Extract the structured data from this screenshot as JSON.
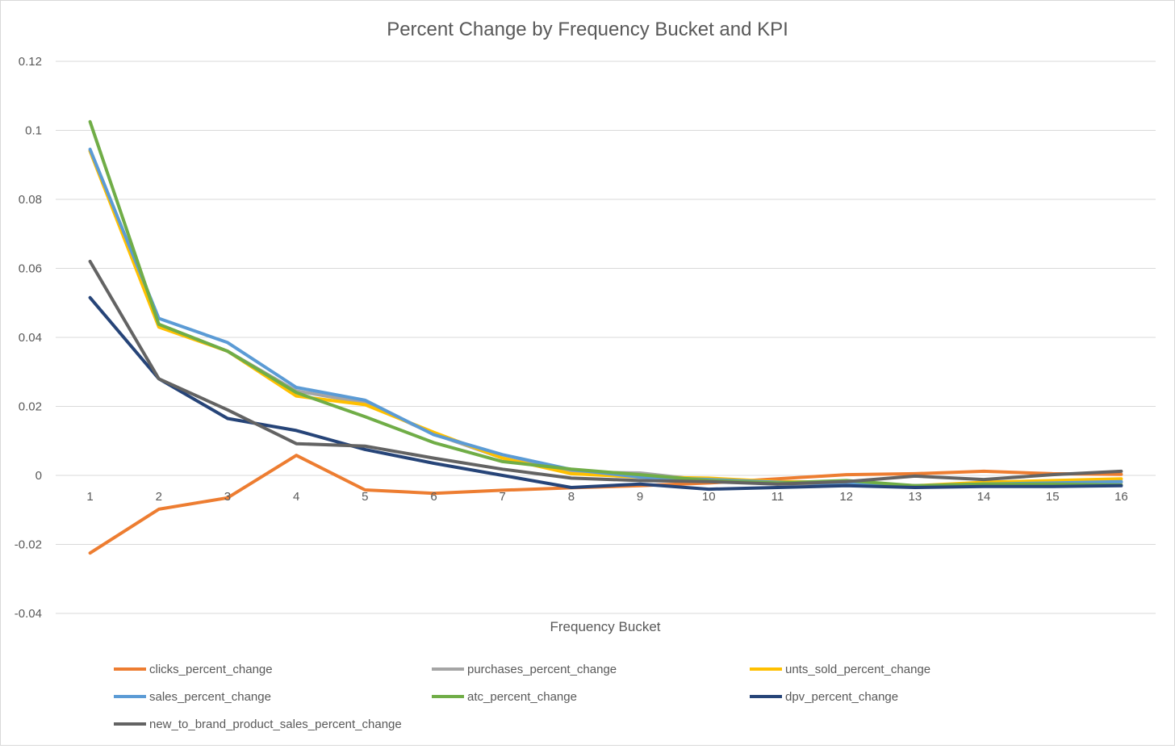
{
  "chart_data": {
    "type": "line",
    "title": "Percent Change by Frequency Bucket and KPI",
    "xlabel": "Frequency Bucket",
    "ylabel": "",
    "categories": [
      "1",
      "2",
      "3",
      "4",
      "5",
      "6",
      "7",
      "8",
      "9",
      "10",
      "11",
      "12",
      "13",
      "14",
      "15",
      "16"
    ],
    "y_ticks": [
      "0.12",
      "0.1",
      "0.08",
      "0.06",
      "0.04",
      "0.02",
      "0",
      "-0.02",
      "-0.04"
    ],
    "ylim": [
      -0.04,
      0.12
    ],
    "grid": true,
    "legend_position": "bottom",
    "series": [
      {
        "name": "clicks_percent_change",
        "color": "#ED7D31",
        "values": [
          -0.0225,
          -0.0098,
          -0.0065,
          0.0058,
          -0.0042,
          -0.0052,
          -0.0043,
          -0.0036,
          -0.003,
          -0.0022,
          -0.001,
          0.0002,
          0.0005,
          0.0012,
          0.0005,
          0.0003
        ]
      },
      {
        "name": "purchases_percent_change",
        "color": "#A5A5A5",
        "values": [
          0.094,
          0.0435,
          0.036,
          0.0245,
          0.021,
          0.012,
          0.005,
          0.001,
          0.0007,
          -0.0015,
          -0.0025,
          -0.0022,
          -0.003,
          -0.0028,
          -0.0022,
          -0.002
        ]
      },
      {
        "name": "unts_sold_percent_change",
        "color": "#FFC000",
        "values": [
          0.094,
          0.043,
          0.036,
          0.023,
          0.0205,
          0.0125,
          0.005,
          0.0005,
          -0.0005,
          -0.0008,
          -0.0018,
          -0.002,
          -0.003,
          -0.002,
          -0.0015,
          -0.001
        ]
      },
      {
        "name": "sales_percent_change",
        "color": "#5B9BD5",
        "values": [
          0.0945,
          0.0455,
          0.0385,
          0.0255,
          0.0218,
          0.0118,
          0.006,
          0.0017,
          -0.0005,
          -0.0012,
          -0.002,
          -0.0025,
          -0.003,
          -0.0025,
          -0.0022,
          -0.0018
        ]
      },
      {
        "name": "atc_percent_change",
        "color": "#70AD47",
        "values": [
          0.1025,
          0.0438,
          0.036,
          0.024,
          0.017,
          0.0095,
          0.004,
          0.0018,
          0.0002,
          -0.0015,
          -0.0022,
          -0.0015,
          -0.003,
          -0.0025,
          -0.0025,
          -0.0028
        ]
      },
      {
        "name": "dpv_percent_change",
        "color": "#264478",
        "values": [
          0.0515,
          0.028,
          0.0165,
          0.013,
          0.0075,
          0.0035,
          0.0,
          -0.0035,
          -0.0025,
          -0.004,
          -0.0035,
          -0.003,
          -0.0035,
          -0.0032,
          -0.0032,
          -0.003
        ]
      },
      {
        "name": "new_to_brand_product_sales_percent_change",
        "color": "#636363",
        "values": [
          0.062,
          0.028,
          0.019,
          0.0092,
          0.0085,
          0.005,
          0.0018,
          -0.0008,
          -0.0015,
          -0.0018,
          -0.0025,
          -0.0018,
          -0.0002,
          -0.0012,
          0.0002,
          0.0012
        ]
      }
    ]
  }
}
